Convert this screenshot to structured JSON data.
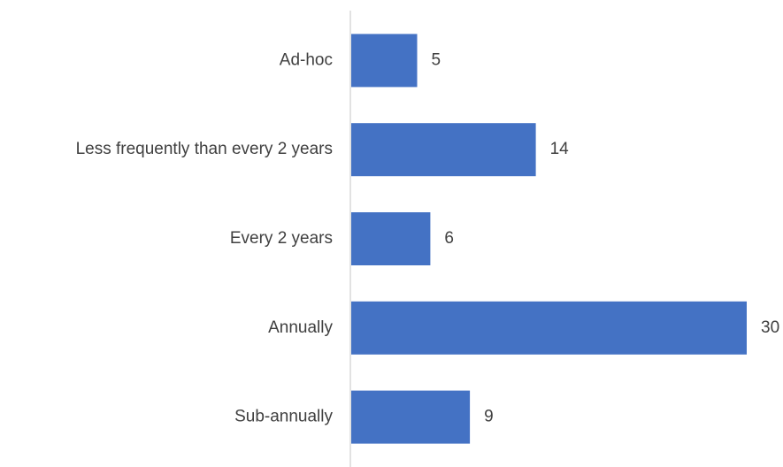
{
  "chart_data": {
    "type": "bar",
    "orientation": "horizontal",
    "categories": [
      "Ad-hoc",
      "Less frequently than every 2 years",
      "Every 2 years",
      "Annually",
      "Sub-annually"
    ],
    "values": [
      5,
      14,
      6,
      30,
      9
    ],
    "data_labels": [
      "5",
      "14",
      "6",
      "30",
      "9"
    ],
    "title": "",
    "xlabel": "",
    "ylabel": "",
    "xlim": [
      0,
      30
    ],
    "grid": false,
    "legend": "none",
    "colors": {
      "bar": "#4472C4",
      "axis": "#D9D9D9",
      "text": "#404040"
    }
  }
}
